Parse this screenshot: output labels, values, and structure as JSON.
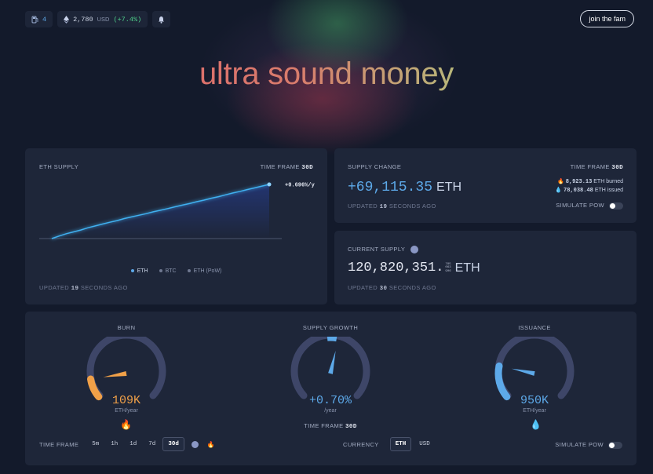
{
  "topbar": {
    "gas_value": "4",
    "eth_price": "2,780",
    "eth_price_unit": "USD",
    "eth_price_change": "(+7.4%)"
  },
  "header": {
    "join_label": "join the fam",
    "hero_words": [
      "ultra",
      "sound",
      "money"
    ]
  },
  "eth_supply": {
    "title": "ETH SUPPLY",
    "timeframe_label": "TIME FRAME",
    "timeframe_value": "30d",
    "rate_label": "+0.696%/y",
    "legend": [
      "ETH",
      "BTC",
      "ETH (PoW)"
    ],
    "updated_prefix": "UPDATED",
    "updated_value": "19",
    "updated_suffix": "SECONDS AGO"
  },
  "chart_data": {
    "type": "line",
    "series": [
      {
        "name": "ETH",
        "values": [
          0.0,
          0.011,
          0.021,
          0.029,
          0.037,
          0.047,
          0.055,
          0.063,
          0.071,
          0.078,
          0.087,
          0.094,
          0.101,
          0.108,
          0.116,
          0.123,
          0.13,
          0.138,
          0.145,
          0.152,
          0.16,
          0.167,
          0.175,
          0.182,
          0.19,
          0.198,
          0.205,
          0.213,
          0.22,
          0.228,
          0.235
        ]
      }
    ],
    "y_end_label": "+0.696%/y",
    "legend_position": "bottom",
    "grid": false
  },
  "supply_change": {
    "title": "SUPPLY CHANGE",
    "timeframe_label": "TIME FRAME",
    "timeframe_value": "30d",
    "value": "+69,115.35",
    "unit": "ETH",
    "burned_value": "8,923.13",
    "burned_unit": "ETH",
    "burned_label": "burned",
    "issued_value": "78,038.48",
    "issued_unit": "ETH",
    "issued_label": "issued",
    "updated_prefix": "UPDATED",
    "updated_value": "19",
    "updated_suffix": "SECONDS AGO",
    "simulate_label": "SIMULATE PoW"
  },
  "current_supply": {
    "title": "CURRENT SUPPLY",
    "value_main": "120,820,351.",
    "value_decimals_top": "785",
    "value_decimals_mid": "063",
    "value_decimals_bot": "906",
    "unit": "ETH",
    "updated_prefix": "UPDATED",
    "updated_value": "30",
    "updated_suffix": "SECONDS AGO"
  },
  "gauges": {
    "burn": {
      "title": "BURN",
      "value": "109K",
      "unit": "ETH/year",
      "color": "#f0a048",
      "level": 0.12
    },
    "supply_growth": {
      "title": "SUPPLY GROWTH",
      "value": "+0.70%",
      "unit": "/year",
      "timeframe_label": "TIME FRAME",
      "timeframe_value": "30d",
      "color": "#5da9e9",
      "level": 0.55
    },
    "issuance": {
      "title": "ISSUANCE",
      "value": "950K",
      "unit": "ETH/year",
      "color": "#5da9e9",
      "level": 0.2
    }
  },
  "bottom": {
    "timeframe_label": "TIME FRAME",
    "timeframes": [
      "5m",
      "1h",
      "1d",
      "7d",
      "30d"
    ],
    "active_timeframe": "30d",
    "currency_label": "CURRENCY",
    "currencies": [
      "ETH",
      "USD"
    ],
    "active_currency": "ETH",
    "simulate_label": "SIMULATE PoW"
  },
  "colors": {
    "background": "#131a2b",
    "card": "#1e2639",
    "accent_blue": "#5da9e9",
    "positive_green": "#4fd18b",
    "burn_orange": "#f0a048"
  }
}
